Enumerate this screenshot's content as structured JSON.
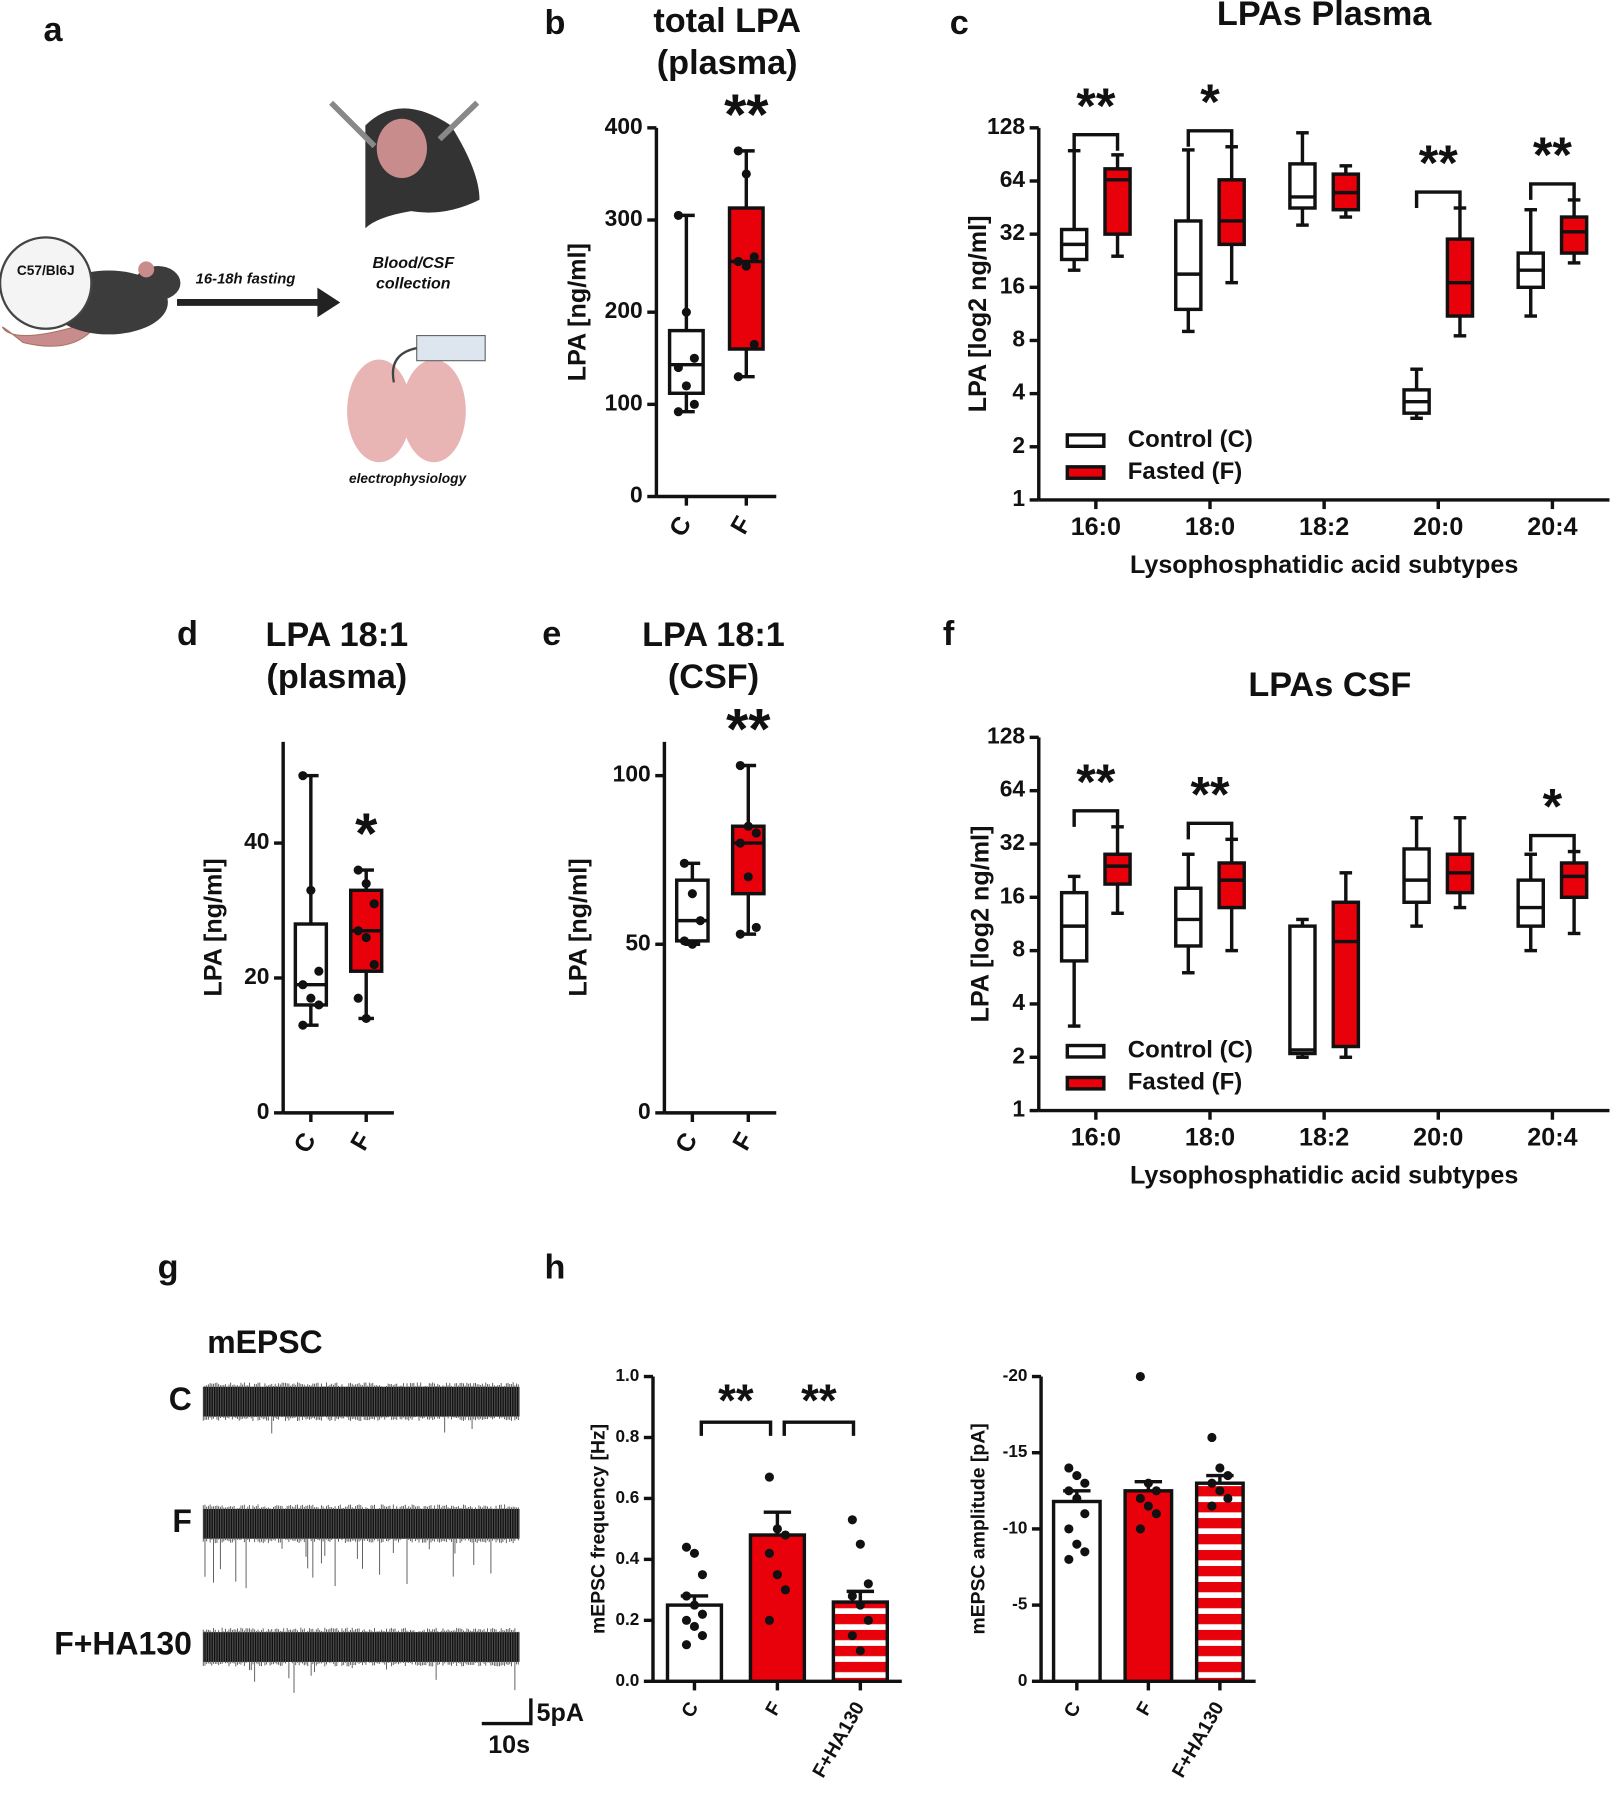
{
  "panels": {
    "a": {
      "letter": "a",
      "strain": "C57/Bl6J",
      "treatment": "16-18h fasting",
      "collection": [
        "Blood/CSF",
        "collection"
      ],
      "method": "electrophysiology"
    },
    "g": {
      "letter": "g",
      "title": "mEPSC",
      "traces": [
        "C",
        "F",
        "F+HA130"
      ],
      "scale_y": "5pA",
      "scale_x": "10s"
    },
    "h": {
      "letter": "h"
    }
  },
  "chart_data": [
    {
      "type": "box",
      "panel": "b",
      "title": [
        "total LPA",
        "(plasma)"
      ],
      "ylabel": "LPA  [ng/ml]",
      "categories": [
        "C",
        "F"
      ],
      "colors": [
        "#ffffff",
        "#e8000b"
      ],
      "boxes": [
        [
          92,
          112,
          143,
          180,
          305
        ],
        [
          130,
          160,
          255,
          313,
          375
        ]
      ],
      "points": [
        [
          305,
          200,
          150,
          140,
          120,
          100,
          92
        ],
        [
          375,
          350,
          260,
          255,
          250,
          165,
          130
        ]
      ],
      "significance": [
        null,
        "**"
      ],
      "ylim": [
        0,
        400
      ],
      "yticks": [
        0,
        100,
        200,
        300,
        400
      ]
    },
    {
      "type": "box",
      "panel": "c",
      "title": [
        "LPAs Plasma"
      ],
      "ylabel": "LPA  [log2 ng/ml]",
      "xlabel": "Lysophosphatidic acid subtypes",
      "categories": [
        "16:0",
        "18:0",
        "18:2",
        "20:0",
        "20:4"
      ],
      "log": true,
      "legend": "lower left",
      "series": [
        {
          "name": "Control (C)",
          "color": "#ffffff",
          "boxes": [
            [
              20,
              23,
              28,
              34,
              95
            ],
            [
              9,
              12,
              19,
              38,
              96
            ],
            [
              36,
              45,
              52,
              80,
              120
            ],
            [
              2.9,
              3.1,
              3.6,
              4.2,
              5.5
            ],
            [
              11,
              16,
              20,
              25,
              44
            ]
          ]
        },
        {
          "name": "Fasted  (F)",
          "color": "#e8000b",
          "boxes": [
            [
              24,
              32,
              65,
              75,
              90
            ],
            [
              17,
              28,
              38,
              65,
              100
            ],
            [
              40,
              44,
              55,
              70,
              78
            ],
            [
              8.5,
              11,
              17,
              30,
              45
            ],
            [
              22,
              25,
              33,
              40,
              50
            ]
          ]
        }
      ],
      "significance": [
        "**",
        "*",
        null,
        "**",
        "**"
      ],
      "ylim": [
        1,
        128
      ],
      "yticks": [
        1,
        2,
        4,
        8,
        16,
        32,
        64,
        128
      ]
    },
    {
      "type": "box",
      "panel": "d",
      "title": [
        "LPA 18:1",
        "(plasma)"
      ],
      "ylabel": "LPA  [ng/ml]",
      "categories": [
        "C",
        "F"
      ],
      "colors": [
        "#ffffff",
        "#e8000b"
      ],
      "boxes": [
        [
          13,
          16,
          19,
          28,
          50
        ],
        [
          14,
          21,
          27,
          33,
          36
        ]
      ],
      "points": [
        [
          50,
          33,
          21,
          19,
          17,
          16,
          13
        ],
        [
          36,
          34,
          31,
          27,
          26,
          22,
          17,
          14
        ]
      ],
      "significance": [
        null,
        "*"
      ],
      "ylim": [
        0,
        55
      ],
      "yticks": [
        0,
        20,
        40
      ]
    },
    {
      "type": "box",
      "panel": "e",
      "title": [
        "LPA 18:1",
        "(CSF)"
      ],
      "ylabel": "LPA  [ng/ml]",
      "categories": [
        "C",
        "F"
      ],
      "colors": [
        "#ffffff",
        "#e8000b"
      ],
      "boxes": [
        [
          50,
          51,
          57,
          69,
          74
        ],
        [
          53,
          65,
          80,
          85,
          103
        ]
      ],
      "points": [
        [
          74,
          65,
          57,
          51,
          50
        ],
        [
          103,
          85,
          83,
          80,
          70,
          55,
          53
        ]
      ],
      "significance": [
        null,
        "**"
      ],
      "ylim": [
        0,
        110
      ],
      "yticks": [
        0,
        50,
        100
      ]
    },
    {
      "type": "box",
      "panel": "f",
      "title": [
        "LPAs CSF"
      ],
      "ylabel": "LPA [log2 ng/ml]",
      "xlabel": "Lysophosphatidic acid subtypes",
      "categories": [
        "16:0",
        "18:0",
        "18:2",
        "20:0",
        "20:4"
      ],
      "log": true,
      "legend": "lower left",
      "series": [
        {
          "name": "Control (C)",
          "color": "#ffffff",
          "boxes": [
            [
              3,
              7,
              11,
              17,
              21
            ],
            [
              6,
              8.5,
              12,
              18,
              28
            ],
            [
              2,
              2.1,
              2.2,
              11,
              12
            ],
            [
              11,
              15,
              20,
              30,
              45
            ],
            [
              8,
              11,
              14,
              20,
              28
            ]
          ]
        },
        {
          "name": "Fasted  (F)",
          "color": "#e8000b",
          "boxes": [
            [
              13,
              19,
              24,
              28,
              40
            ],
            [
              8,
              14,
              20,
              25,
              34
            ],
            [
              2,
              2.3,
              9,
              15,
              22
            ],
            [
              14,
              17,
              22,
              28,
              45
            ],
            [
              10,
              16,
              21,
              25,
              29
            ]
          ]
        }
      ],
      "significance": [
        "**",
        "**",
        null,
        null,
        "*"
      ],
      "ylim": [
        1,
        128
      ],
      "yticks": [
        1,
        2,
        4,
        8,
        16,
        32,
        64,
        128
      ]
    },
    {
      "type": "bar",
      "ylabel": "mEPSC frequency [Hz]",
      "categories": [
        "C",
        "F",
        "F+HA130"
      ],
      "values": [
        0.25,
        0.48,
        0.26
      ],
      "errors": [
        0.03,
        0.075,
        0.035
      ],
      "colors": [
        "#ffffff",
        "#e8000b",
        "#e8000b"
      ],
      "hatch": [
        false,
        false,
        true
      ],
      "points": [
        [
          0.44,
          0.42,
          0.35,
          0.28,
          0.25,
          0.22,
          0.2,
          0.18,
          0.15,
          0.12
        ],
        [
          0.67,
          0.5,
          0.48,
          0.42,
          0.35,
          0.3,
          0.2
        ],
        [
          0.53,
          0.45,
          0.32,
          0.28,
          0.25,
          0.2,
          0.15,
          0.1
        ]
      ],
      "comparisons": [
        {
          "text": "**",
          "from": 0,
          "to": 1
        },
        {
          "text": "**",
          "from": 1,
          "to": 2
        }
      ],
      "ylim": [
        0,
        1
      ],
      "yticks": [
        {
          "value": 0,
          "label": "0.0"
        },
        0.2,
        0.4,
        0.6,
        0.8,
        {
          "value": 1,
          "label": "1.0"
        }
      ]
    },
    {
      "type": "bar",
      "ylabel": "mEPSC amplitude [pA]",
      "categories": [
        "C",
        "F",
        "F+HA130"
      ],
      "values": [
        -11.8,
        -12.5,
        -13
      ],
      "errors": [
        0.7,
        0.6,
        0.5
      ],
      "colors": [
        "#ffffff",
        "#e8000b",
        "#e8000b"
      ],
      "hatch": [
        false,
        false,
        true
      ],
      "points": [
        [
          -14,
          -13.5,
          -13,
          -12.5,
          -12,
          -11,
          -10,
          -9,
          -8.5,
          -8
        ],
        [
          -20,
          -13,
          -12.5,
          -12,
          -11.5,
          -11,
          -10
        ],
        [
          -16,
          -14,
          -13.5,
          -13,
          -12.5,
          -12,
          -11.5
        ]
      ],
      "ylim": [
        0,
        -20
      ],
      "yticks": [
        0,
        -5,
        -10,
        -15,
        -20
      ]
    }
  ]
}
